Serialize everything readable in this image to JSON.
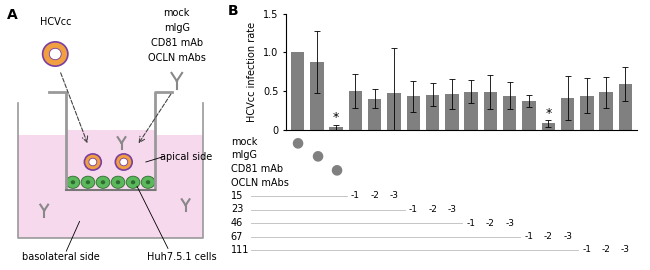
{
  "diagram": {
    "panel_label": "A",
    "virus": "HCVcc",
    "antibodies": [
      "mock",
      "mIgG",
      "CD81 mAb",
      "OCLN mAbs"
    ],
    "apical": "apical side",
    "basolateral": "basolateral side",
    "cells": "Huh7.5.1 cells"
  },
  "chart_data": {
    "type": "bar",
    "panel_label": "B",
    "y_label": "HCVcc infection rate",
    "categories": [
      null,
      null,
      null,
      null,
      null,
      null,
      null,
      null,
      null,
      null,
      null,
      null,
      null,
      null,
      null,
      null,
      null,
      null
    ],
    "values": [
      1.0,
      0.87,
      0.03,
      0.5,
      0.4,
      0.47,
      0.43,
      0.45,
      0.46,
      0.49,
      0.49,
      0.44,
      0.37,
      0.08,
      0.41,
      0.44,
      0.48,
      0.59
    ],
    "errors": [
      null,
      0.4,
      0.03,
      0.22,
      0.12,
      0.58,
      0.2,
      0.15,
      0.2,
      0.15,
      0.22,
      0.18,
      0.08,
      0.04,
      0.28,
      0.23,
      0.2,
      0.22
    ],
    "significance": [
      null,
      null,
      "*",
      null,
      null,
      null,
      null,
      null,
      null,
      null,
      null,
      null,
      null,
      "*",
      null,
      null,
      null,
      null
    ],
    "color": "#808080",
    "ylim": [
      0,
      1.5
    ],
    "yticks": [
      0,
      {
        "value": 0.5,
        "label": "0.5"
      },
      {
        "value": 1.0,
        "label": "1.0"
      },
      {
        "value": 1.5,
        "label": "1.5"
      }
    ],
    "tick_labels": "y",
    "treatment_rows": [
      {
        "label": "mock",
        "cells": [
          "●",
          null,
          null,
          null,
          null,
          null,
          null,
          null,
          null,
          null,
          null,
          null,
          null,
          null,
          null,
          null,
          null,
          null
        ]
      },
      {
        "label": "mIgG",
        "cells": [
          null,
          "●",
          null,
          null,
          null,
          null,
          null,
          null,
          null,
          null,
          null,
          null,
          null,
          null,
          null,
          null,
          null,
          null
        ]
      },
      {
        "label": "CD81 mAb",
        "cells": [
          null,
          null,
          "●",
          null,
          null,
          null,
          null,
          null,
          null,
          null,
          null,
          null,
          null,
          null,
          null,
          null,
          null,
          null
        ]
      },
      {
        "label": "OCLN mAbs",
        "cells": [
          null,
          null,
          null,
          null,
          null,
          null,
          null,
          null,
          null,
          null,
          null,
          null,
          null,
          null,
          null,
          null,
          null,
          null
        ]
      },
      {
        "label": "15",
        "cells": [
          null,
          null,
          null,
          "-1",
          "-2",
          "-3",
          null,
          null,
          null,
          null,
          null,
          null,
          null,
          null,
          null,
          null,
          null,
          null
        ]
      },
      {
        "label": "23",
        "cells": [
          null,
          null,
          null,
          null,
          null,
          null,
          "-1",
          "-2",
          "-3",
          null,
          null,
          null,
          null,
          null,
          null,
          null,
          null,
          null
        ]
      },
      {
        "label": "46",
        "cells": [
          null,
          null,
          null,
          null,
          null,
          null,
          null,
          null,
          null,
          "-1",
          "-2",
          "-3",
          null,
          null,
          null,
          null,
          null,
          null
        ]
      },
      {
        "label": "67",
        "cells": [
          null,
          null,
          null,
          null,
          null,
          null,
          null,
          null,
          null,
          null,
          null,
          null,
          "-1",
          "-2",
          "-3",
          null,
          null,
          null
        ]
      },
      {
        "label": "111",
        "cells": [
          null,
          null,
          null,
          null,
          null,
          null,
          null,
          null,
          null,
          null,
          null,
          null,
          null,
          null,
          null,
          "-1",
          "-2",
          "-3"
        ]
      }
    ]
  }
}
